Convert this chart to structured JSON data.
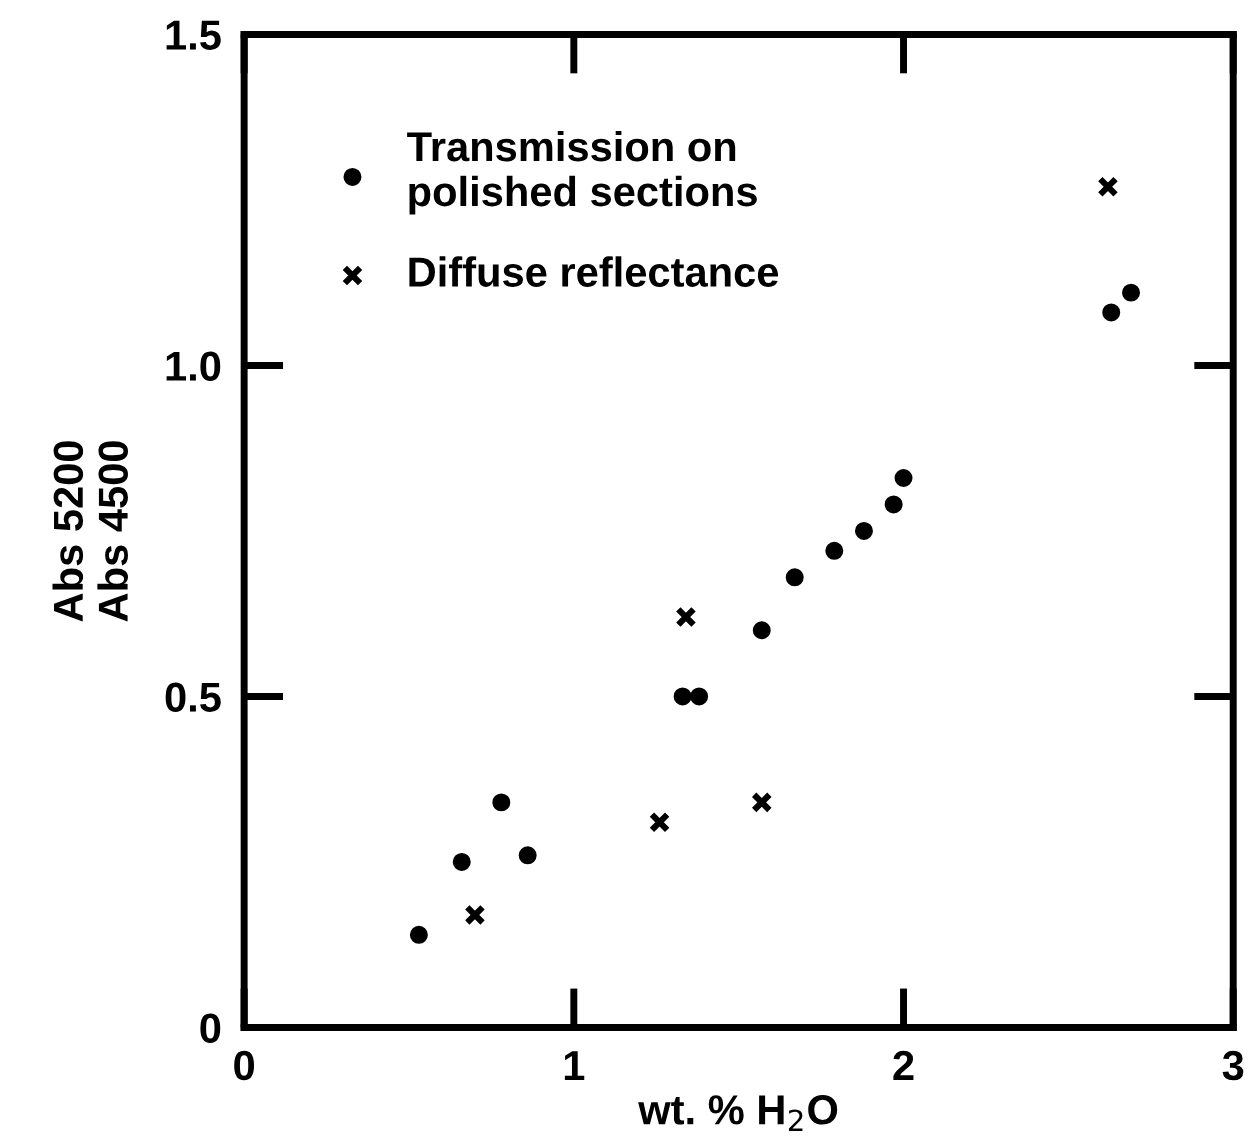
{
  "chart_data": {
    "type": "scatter",
    "xlabel": "wt. % H$_{2}$O",
    "ylabel": "Abs 5200\nAbs 4500",
    "xlim": [
      0,
      3
    ],
    "ylim": [
      0,
      1.5
    ],
    "xticks": [
      0,
      1,
      2,
      3
    ],
    "yticks": [
      0,
      0.5,
      {
        "value": 1,
        "label": "1.0"
      },
      1.5
    ],
    "grid": false,
    "legend": "top left",
    "series": [
      {
        "name": "Transmission on\npolished sections",
        "color": "#000000",
        "marker": "circle",
        "x": [
          0.53,
          0.66,
          0.78,
          0.86,
          1.33,
          1.38,
          1.57,
          1.67,
          1.79,
          1.88,
          1.97,
          2.0,
          2.63,
          2.69
        ],
        "values": [
          0.14,
          0.25,
          0.34,
          0.26,
          0.5,
          0.5,
          0.6,
          0.68,
          0.72,
          0.75,
          0.79,
          0.83,
          1.08,
          1.11
        ]
      },
      {
        "name": "Diffuse reflectance",
        "color": "#000000",
        "marker": "cross",
        "x": [
          0.7,
          1.26,
          1.34,
          1.57,
          2.62
        ],
        "values": [
          0.17,
          0.31,
          0.62,
          0.34,
          1.27
        ]
      }
    ]
  }
}
